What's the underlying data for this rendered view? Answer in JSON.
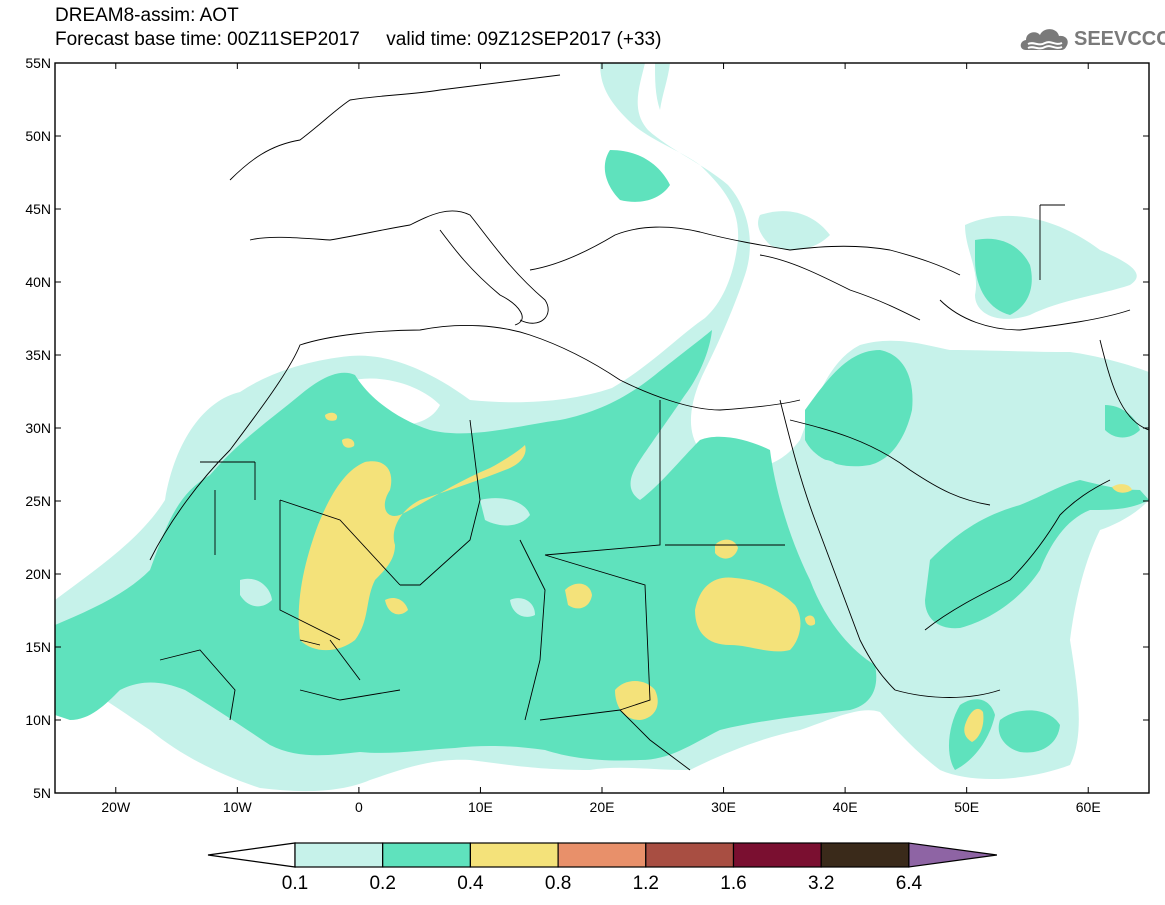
{
  "header": {
    "title": "DREAM8-assim: AOT",
    "base_time_label": "Forecast base time: 00Z11SEP2017",
    "valid_time_label": "valid time: 09Z12SEP2017 (+33)"
  },
  "logo": {
    "text": "SEEVCCC",
    "icon": "cloud-icon"
  },
  "map": {
    "lon_range": [
      -25,
      65
    ],
    "lat_range": [
      5,
      55
    ],
    "lon_ticks": [
      {
        "value": -20,
        "label": "20W"
      },
      {
        "value": -10,
        "label": "10W"
      },
      {
        "value": 0,
        "label": "0"
      },
      {
        "value": 10,
        "label": "10E"
      },
      {
        "value": 20,
        "label": "20E"
      },
      {
        "value": 30,
        "label": "30E"
      },
      {
        "value": 40,
        "label": "40E"
      },
      {
        "value": 50,
        "label": "50E"
      },
      {
        "value": 60,
        "label": "60E"
      }
    ],
    "lat_ticks": [
      {
        "value": 5,
        "label": "5N"
      },
      {
        "value": 10,
        "label": "10N"
      },
      {
        "value": 15,
        "label": "15N"
      },
      {
        "value": 20,
        "label": "20N"
      },
      {
        "value": 25,
        "label": "25N"
      },
      {
        "value": 30,
        "label": "30N"
      },
      {
        "value": 35,
        "label": "35N"
      },
      {
        "value": 40,
        "label": "40N"
      },
      {
        "value": 45,
        "label": "45N"
      },
      {
        "value": 50,
        "label": "50N"
      },
      {
        "value": 55,
        "label": "55N"
      }
    ]
  },
  "colorbar": {
    "labels": [
      "0.1",
      "0.2",
      "0.4",
      "0.8",
      "1.2",
      "1.6",
      "3.2",
      "6.4"
    ],
    "colors": [
      "#c6f2ea",
      "#5fe2bd",
      "#f4e27a",
      "#e8906a",
      "#a84e42",
      "#7a0f30",
      "#3a2a1a",
      "#8e64a4"
    ]
  },
  "colors": {
    "band_01": "#c6f2ea",
    "band_02": "#5fe2bd",
    "band_04": "#f4e27a"
  }
}
